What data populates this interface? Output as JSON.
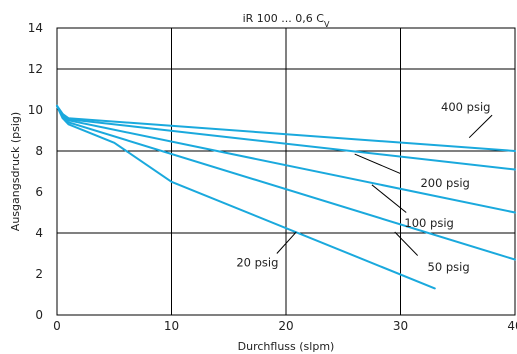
{
  "chart_data": {
    "type": "line",
    "title": "iR 100 ... 0,6 C",
    "title_subscript": "V",
    "xlabel": "Durchfluss (slpm)",
    "ylabel": "Ausgangsdruck (psig)",
    "xlim": [
      0,
      40
    ],
    "ylim": [
      0,
      14
    ],
    "xticks": [
      0,
      10,
      20,
      30,
      40
    ],
    "yticks": [
      0,
      2,
      4,
      6,
      8,
      10,
      12,
      14
    ],
    "grid": true,
    "line_color": "#1aa9dd",
    "series": [
      {
        "name": "400 psig",
        "x": [
          0,
          0.5,
          1,
          40
        ],
        "y": [
          10.2,
          9.8,
          9.6,
          8.0
        ]
      },
      {
        "name": "200 psig",
        "x": [
          0,
          0.5,
          1,
          40
        ],
        "y": [
          10.2,
          9.8,
          9.55,
          7.1
        ]
      },
      {
        "name": "100 psig",
        "x": [
          0,
          0.5,
          1,
          40
        ],
        "y": [
          10.2,
          9.7,
          9.5,
          5.0
        ]
      },
      {
        "name": "50 psig",
        "x": [
          0,
          0.5,
          1,
          40
        ],
        "y": [
          10.2,
          9.6,
          9.4,
          2.7
        ]
      },
      {
        "name": "20 psig",
        "x": [
          0,
          0.5,
          1,
          5,
          10,
          33
        ],
        "y": [
          10.2,
          9.6,
          9.3,
          8.4,
          6.5,
          1.3
        ]
      }
    ]
  }
}
